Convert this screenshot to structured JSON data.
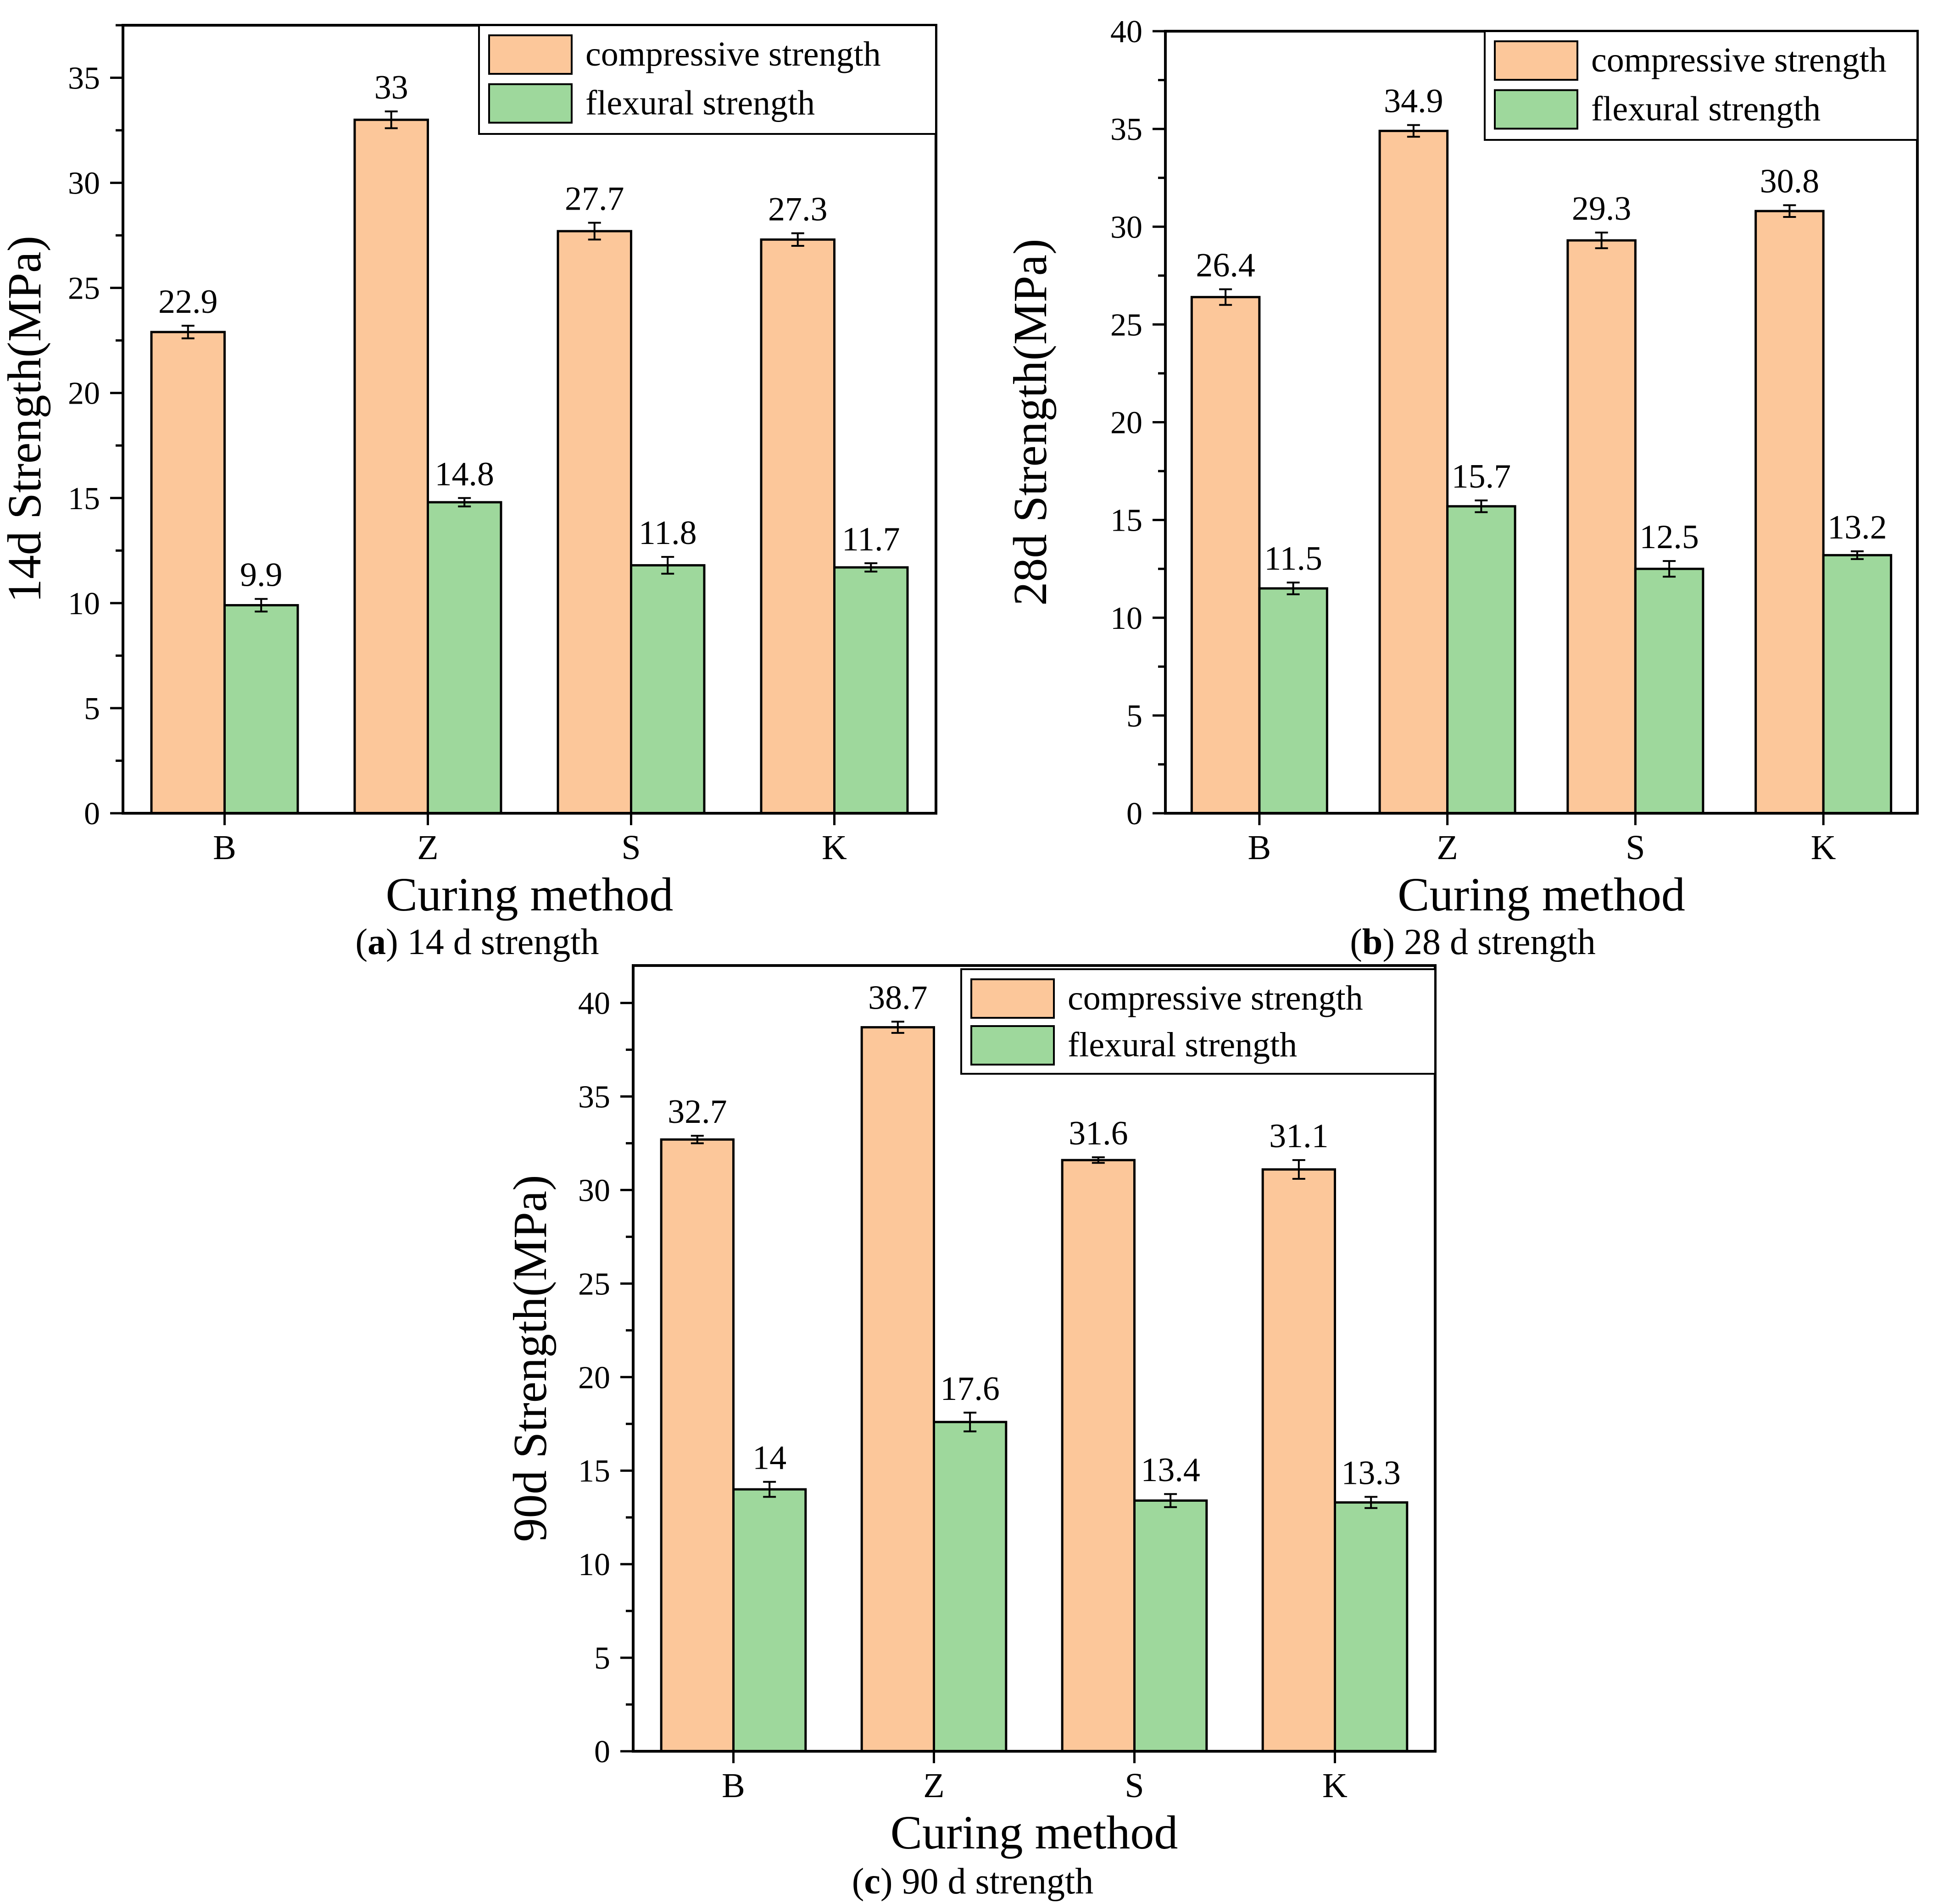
{
  "figure": {
    "captions": [
      {
        "prefix": "(",
        "label": "a",
        "suffix": ") 14 d strength"
      },
      {
        "prefix": "(",
        "label": "b",
        "suffix": ") 28 d strength"
      },
      {
        "prefix": "(",
        "label": "c",
        "suffix": ") 90 d strength"
      }
    ]
  },
  "colors": {
    "compressive": "#FCC79A",
    "flexural": "#9ED89C",
    "axis": "#000000"
  },
  "chart_data": [
    {
      "id": "a",
      "type": "bar",
      "title": "",
      "xlabel": "Curing method",
      "ylabel": "14d Strength(MPa)",
      "categories": [
        "B",
        "Z",
        "S",
        "K"
      ],
      "ylim": [
        0,
        37.5
      ],
      "yticks": [
        0,
        5,
        10,
        15,
        20,
        25,
        30,
        35
      ],
      "yticks_minor": 2.5,
      "grid": false,
      "legend": "top-right",
      "series": [
        {
          "name": "compressive strength",
          "values": [
            22.9,
            33,
            27.7,
            27.3
          ],
          "labels": [
            "22.9",
            "33",
            "27.7",
            "27.3"
          ],
          "errors": [
            0.3,
            0.4,
            0.4,
            0.3
          ]
        },
        {
          "name": "flexural strength",
          "values": [
            9.9,
            14.8,
            11.8,
            11.7
          ],
          "labels": [
            "9.9",
            "14.8",
            "11.8",
            "11.7"
          ],
          "errors": [
            0.3,
            0.2,
            0.4,
            0.2
          ]
        }
      ]
    },
    {
      "id": "b",
      "type": "bar",
      "title": "",
      "xlabel": "Curing method",
      "ylabel": "28d Strength(MPa)",
      "categories": [
        "B",
        "Z",
        "S",
        "K"
      ],
      "ylim": [
        0,
        40
      ],
      "yticks": [
        0,
        5,
        10,
        15,
        20,
        25,
        30,
        35,
        40
      ],
      "yticks_minor": 2.5,
      "grid": false,
      "legend": "top-right",
      "series": [
        {
          "name": "compressive strength",
          "values": [
            26.4,
            34.9,
            29.3,
            30.8
          ],
          "labels": [
            "26.4",
            "34.9",
            "29.3",
            "30.8"
          ],
          "errors": [
            0.4,
            0.3,
            0.4,
            0.3
          ]
        },
        {
          "name": "flexural strength",
          "values": [
            11.5,
            15.7,
            12.5,
            13.2
          ],
          "labels": [
            "11.5",
            "15.7",
            "12.5",
            "13.2"
          ],
          "errors": [
            0.3,
            0.3,
            0.4,
            0.2
          ]
        }
      ]
    },
    {
      "id": "c",
      "type": "bar",
      "title": "",
      "xlabel": "Curing method",
      "ylabel": "90d Strength(MPa)",
      "categories": [
        "B",
        "Z",
        "S",
        "K"
      ],
      "ylim": [
        0,
        42
      ],
      "yticks": [
        0,
        5,
        10,
        15,
        20,
        25,
        30,
        35,
        40
      ],
      "yticks_minor": 2.5,
      "grid": false,
      "legend": "top-right",
      "series": [
        {
          "name": "compressive strength",
          "values": [
            32.7,
            38.7,
            31.6,
            31.1
          ],
          "labels": [
            "32.7",
            "38.7",
            "31.6",
            "31.1"
          ],
          "errors": [
            0.2,
            0.3,
            0.15,
            0.5
          ]
        },
        {
          "name": "flexural strength",
          "values": [
            14,
            17.6,
            13.4,
            13.3
          ],
          "labels": [
            "14",
            "17.6",
            "13.4",
            "13.3"
          ],
          "errors": [
            0.4,
            0.5,
            0.35,
            0.3
          ]
        }
      ]
    }
  ]
}
